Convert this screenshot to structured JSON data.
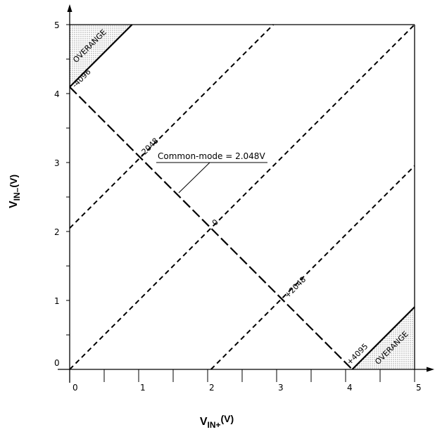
{
  "chart_data": {
    "type": "line",
    "xlabel_main": "V",
    "xlabel_sub": "IN+",
    "xlabel_unit": "(V)",
    "ylabel_main": "V",
    "ylabel_sub": "IN–",
    "ylabel_unit": "(V)",
    "xlim": [
      0,
      5
    ],
    "ylim": [
      0,
      5
    ],
    "x_ticks": [
      "0",
      "1",
      "2",
      "3",
      "4",
      "5"
    ],
    "y_ticks": [
      "0",
      "1",
      "2",
      "3",
      "4",
      "5"
    ],
    "series": [
      {
        "style": "long-dash",
        "x": [
          0,
          4.096
        ],
        "y": [
          4.096,
          0
        ]
      },
      {
        "style": "short-dash",
        "x": [
          0,
          2.952
        ],
        "y": [
          2.048,
          5
        ]
      },
      {
        "style": "short-dash",
        "x": [
          0,
          5
        ],
        "y": [
          0,
          5
        ]
      },
      {
        "style": "short-dash",
        "x": [
          2.048,
          5
        ],
        "y": [
          0,
          2.952
        ]
      },
      {
        "style": "solid",
        "x": [
          0,
          0.904
        ],
        "y": [
          4.096,
          5
        ]
      },
      {
        "style": "solid",
        "x": [
          4.096,
          5
        ],
        "y": [
          0,
          0.904
        ]
      }
    ],
    "code_labels": [
      {
        "text": "-4096",
        "x": 0.02,
        "y": 4.1
      },
      {
        "text": "-2048",
        "x": 1.0,
        "y": 3.1
      },
      {
        "text": "0",
        "x": 2.05,
        "y": 2.1
      },
      {
        "text": "+2048",
        "x": 3.1,
        "y": 1.05
      },
      {
        "text": "+4095",
        "x": 4.0,
        "y": 0.08
      }
    ],
    "overrange_labels": [
      "OVERANGE",
      "OVERANGE"
    ],
    "annotation": {
      "text": "Common-mode = 2.048V",
      "x": 1.58,
      "y": 2.55
    }
  }
}
